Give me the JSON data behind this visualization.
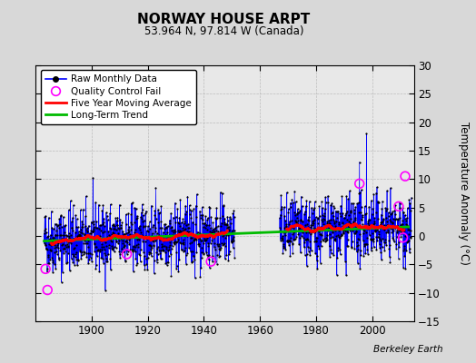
{
  "title": "NORWAY HOUSE ARPT",
  "subtitle": "53.964 N, 97.814 W (Canada)",
  "ylabel": "Temperature Anomaly (°C)",
  "watermark": "Berkeley Earth",
  "xlim": [
    1880,
    2015
  ],
  "ylim": [
    -15,
    30
  ],
  "yticks": [
    -15,
    -10,
    -5,
    0,
    5,
    10,
    15,
    20,
    25,
    30
  ],
  "xticks": [
    1900,
    1920,
    1940,
    1960,
    1980,
    2000
  ],
  "bg_color": "#d8d8d8",
  "plot_bg_color": "#e8e8e8",
  "seed": 42,
  "raw_color": "#0000ff",
  "qc_color": "#ff00ff",
  "ma_color": "#ff0000",
  "trend_color": "#00bb00",
  "trend_x": [
    1883,
    2013
  ],
  "trend_y": [
    -0.9,
    1.6
  ],
  "seg1_start": 1883,
  "seg1_end": 1951,
  "seg2_start": 1967,
  "seg2_end": 2014,
  "base_std": 2.8,
  "qc_years": [
    1883.5,
    1884.2,
    1912.5,
    1942.5,
    1995.5,
    2009.5,
    2011.0,
    2011.8
  ],
  "qc_vals": [
    -5.8,
    -9.5,
    -3.2,
    -4.5,
    9.2,
    5.2,
    -0.3,
    10.5
  ]
}
